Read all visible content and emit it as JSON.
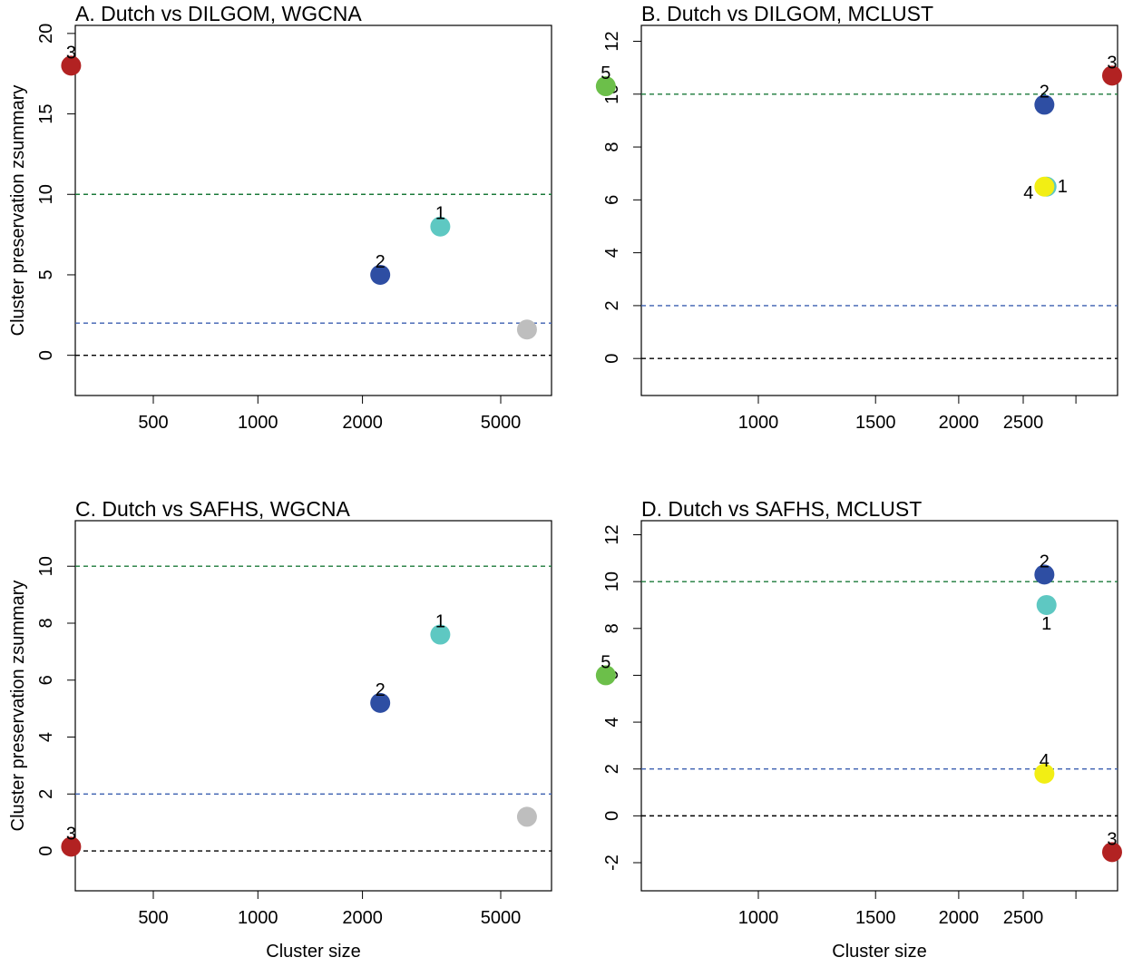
{
  "chart_data": [
    {
      "type": "scatter",
      "title": "A. Dutch vs DILGOM, WGCNA",
      "xlabel": "",
      "ylabel": "Cluster preservation zsummary",
      "xscale": "log",
      "xticks": [
        500,
        1000,
        2000,
        5000
      ],
      "ylim": [
        -2.5,
        20.5
      ],
      "yticks": [
        0,
        5,
        10,
        15,
        20
      ],
      "reference_lines": [
        {
          "y": 10,
          "color": "#1b7a3a"
        },
        {
          "y": 2,
          "color": "#3b5fb0"
        },
        {
          "y": 0,
          "color": "#000000"
        }
      ],
      "points": [
        {
          "label": "3",
          "x": 290,
          "y": 18,
          "color": "#b22222",
          "label_pos": "above"
        },
        {
          "label": "2",
          "x": 2250,
          "y": 5,
          "color": "#2e4ea3",
          "label_pos": "above"
        },
        {
          "label": "1",
          "x": 3350,
          "y": 8,
          "color": "#5ec8c2",
          "label_pos": "above"
        },
        {
          "label": "",
          "x": 5950,
          "y": 1.6,
          "color": "#bebebe",
          "label_pos": "none"
        }
      ]
    },
    {
      "type": "scatter",
      "title": "B. Dutch vs DILGOM, MCLUST",
      "xlabel": "",
      "ylabel": "",
      "xscale": "log",
      "xticks": [
        1000,
        1500,
        2000,
        2500,
        3000
      ],
      "xtick_labels": [
        "1000",
        "1500",
        "2000",
        "2500",
        ""
      ],
      "ylim": [
        -1.4,
        12.6
      ],
      "yticks": [
        0,
        2,
        4,
        6,
        8,
        10,
        12
      ],
      "reference_lines": [
        {
          "y": 10,
          "color": "#1b7a3a"
        },
        {
          "y": 2,
          "color": "#3b5fb0"
        },
        {
          "y": 0,
          "color": "#000000"
        }
      ],
      "points": [
        {
          "label": "5",
          "x": 590,
          "y": 10.3,
          "color": "#6cbf4a",
          "label_pos": "above"
        },
        {
          "label": "2",
          "x": 2690,
          "y": 9.6,
          "color": "#2e4ea3",
          "label_pos": "above"
        },
        {
          "label": "1",
          "x": 2710,
          "y": 6.5,
          "color": "#5ec8c2",
          "label_pos": "right"
        },
        {
          "label": "4",
          "x": 2690,
          "y": 6.5,
          "color": "#f2ee14",
          "label_pos": "left"
        },
        {
          "label": "3",
          "x": 3400,
          "y": 10.7,
          "color": "#b22222",
          "label_pos": "above"
        }
      ]
    },
    {
      "type": "scatter",
      "title": "C. Dutch vs SAFHS, WGCNA",
      "xlabel": "Cluster size",
      "ylabel": "Cluster preservation zsummary",
      "xscale": "log",
      "xticks": [
        500,
        1000,
        2000,
        5000
      ],
      "ylim": [
        -1.4,
        11.6
      ],
      "yticks": [
        0,
        2,
        4,
        6,
        8,
        10
      ],
      "reference_lines": [
        {
          "y": 10,
          "color": "#1b7a3a"
        },
        {
          "y": 2,
          "color": "#3b5fb0"
        },
        {
          "y": 0,
          "color": "#000000"
        }
      ],
      "points": [
        {
          "label": "3",
          "x": 290,
          "y": 0.15,
          "color": "#b22222",
          "label_pos": "above"
        },
        {
          "label": "2",
          "x": 2250,
          "y": 5.2,
          "color": "#2e4ea3",
          "label_pos": "above"
        },
        {
          "label": "1",
          "x": 3350,
          "y": 7.6,
          "color": "#5ec8c2",
          "label_pos": "above"
        },
        {
          "label": "",
          "x": 5950,
          "y": 1.2,
          "color": "#bebebe",
          "label_pos": "none"
        }
      ]
    },
    {
      "type": "scatter",
      "title": "D. Dutch vs SAFHS, MCLUST",
      "xlabel": "Cluster size",
      "ylabel": "",
      "xscale": "log",
      "xticks": [
        1000,
        1500,
        2000,
        2500,
        3000
      ],
      "xtick_labels": [
        "1000",
        "1500",
        "2000",
        "2500",
        ""
      ],
      "ylim": [
        -3.2,
        12.6
      ],
      "yticks": [
        -2,
        0,
        2,
        4,
        6,
        8,
        10,
        12
      ],
      "reference_lines": [
        {
          "y": 10,
          "color": "#1b7a3a"
        },
        {
          "y": 2,
          "color": "#3b5fb0"
        },
        {
          "y": 0,
          "color": "#000000"
        }
      ],
      "points": [
        {
          "label": "5",
          "x": 590,
          "y": 6.0,
          "color": "#6cbf4a",
          "label_pos": "above"
        },
        {
          "label": "2",
          "x": 2690,
          "y": 10.3,
          "color": "#2e4ea3",
          "label_pos": "above"
        },
        {
          "label": "1",
          "x": 2710,
          "y": 9.0,
          "color": "#5ec8c2",
          "label_pos": "below"
        },
        {
          "label": "4",
          "x": 2690,
          "y": 1.8,
          "color": "#f2ee14",
          "label_pos": "above"
        },
        {
          "label": "3",
          "x": 3400,
          "y": -1.55,
          "color": "#b22222",
          "label_pos": "above"
        }
      ]
    }
  ]
}
